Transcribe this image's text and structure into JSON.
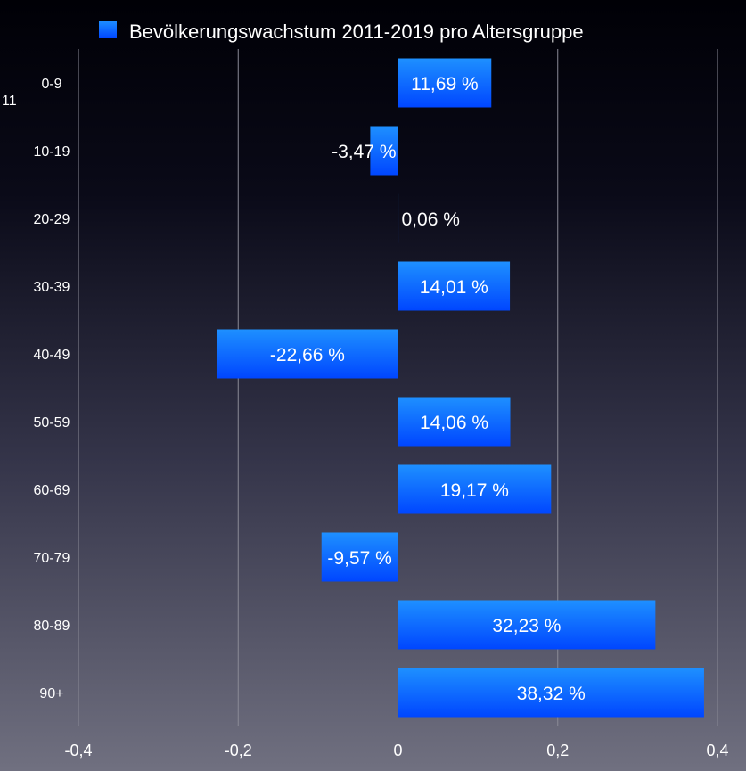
{
  "chart_data": {
    "type": "bar",
    "orientation": "horizontal",
    "title": "",
    "legend": {
      "position": "top-center",
      "entries": [
        "Bevölkerungswachstum 2011-2019 pro Altersgruppe"
      ]
    },
    "stray_label": "11",
    "categories": [
      "0-9",
      "10-19",
      "20-29",
      "30-39",
      "40-49",
      "50-59",
      "60-69",
      "70-79",
      "80-89",
      "90+"
    ],
    "series": [
      {
        "name": "Bevölkerungswachstum 2011-2019 pro Altersgruppe",
        "color": "#0a6cff",
        "values": [
          0.1169,
          -0.0347,
          0.0006,
          0.1401,
          -0.2266,
          0.1406,
          0.1917,
          -0.0957,
          0.3223,
          0.3832
        ],
        "data_labels": [
          "11,69 %",
          "-3,47 %",
          "0,06 %",
          "14,01 %",
          "-22,66 %",
          "14,06 %",
          "19,17 %",
          "-9,57 %",
          "32,23 %",
          "38,32 %"
        ]
      }
    ],
    "xlim": [
      -0.4,
      0.4
    ],
    "xticks": [
      -0.4,
      -0.2,
      0,
      0.2,
      0.4
    ],
    "xtick_labels": [
      "-0,4",
      "-0,2",
      "0",
      "0,2",
      "0,4"
    ],
    "xlabel": "",
    "ylabel": "",
    "grid": true
  }
}
